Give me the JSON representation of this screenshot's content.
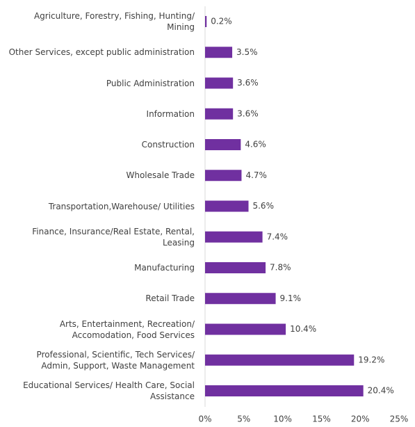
{
  "chart_data": {
    "type": "bar",
    "orientation": "horizontal",
    "color": "#7030a0",
    "categories": [
      "Agriculture, Forestry, Fishing, Hunting/\nMining",
      "Other Services, except public administration",
      "Public Administration",
      "Information",
      "Construction",
      "Wholesale Trade",
      "Transportation,Warehouse/ Utilities",
      "Finance, Insurance/Real Estate, Rental,\nLeasing",
      "Manufacturing",
      "Retail Trade",
      "Arts, Entertainment, Recreation/\nAccomodation, Food Services",
      "Professional, Scientific, Tech Services/\nAdmin, Support, Waste Management",
      "Educational Services/ Health Care, Social\nAssistance"
    ],
    "values": [
      0.2,
      3.5,
      3.6,
      3.6,
      4.6,
      4.7,
      5.6,
      7.4,
      7.8,
      9.1,
      10.4,
      19.2,
      20.4
    ],
    "value_labels": [
      "0.2%",
      "3.5%",
      "3.6%",
      "3.6%",
      "4.6%",
      "4.7%",
      "5.6%",
      "7.4%",
      "7.8%",
      "9.1%",
      "10.4%",
      "19.2%",
      "20.4%"
    ],
    "xlim": [
      0,
      25
    ],
    "xticks": [
      {
        "value": 0,
        "label": "0%"
      },
      {
        "value": 5,
        "label": "5%"
      },
      {
        "value": 10,
        "label": "10%"
      },
      {
        "value": 15,
        "label": "15%"
      },
      {
        "value": 20,
        "label": "20%"
      },
      {
        "value": 25,
        "label": "25%"
      }
    ],
    "grid": false
  }
}
